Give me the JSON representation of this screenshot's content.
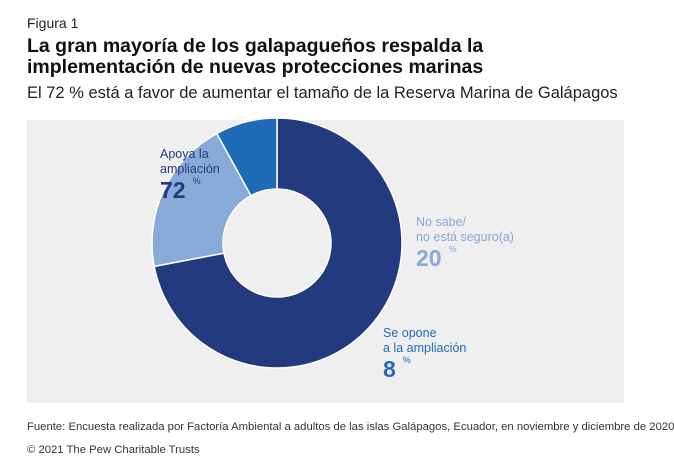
{
  "figure_label": "Figura 1",
  "title": "La gran mayoría de los galapagueños respalda la implementación de nuevas protecciones marinas",
  "subtitle": "El 72 % está a favor de aumentar el tamaño de la Reserva Marina de Galápagos",
  "chart_data": {
    "type": "pie",
    "donut": true,
    "unit": "%",
    "slices": [
      {
        "label_line1": "Apoya la",
        "label_line2": "ampliación",
        "value": 72,
        "value_text": "72",
        "color": "#243a7f",
        "label_color": "#243a7f"
      },
      {
        "label_line1": "No sabe/",
        "label_line2": "no está seguro(a)",
        "value": 20,
        "value_text": "20",
        "color": "#89a9d8",
        "label_color": "#89a9d8"
      },
      {
        "label_line1": "Se opone",
        "label_line2": "a la ampliación",
        "value": 8,
        "value_text": "8",
        "color": "#1f6bb8",
        "label_color": "#1f6bb8"
      }
    ]
  },
  "source": "Fuente: Encuesta realizada por Factoría Ambiental a adultos de las islas Galápagos, Ecuador, en noviembre y diciembre de 2020",
  "copyright": "© 2021 The Pew Charitable Trusts"
}
